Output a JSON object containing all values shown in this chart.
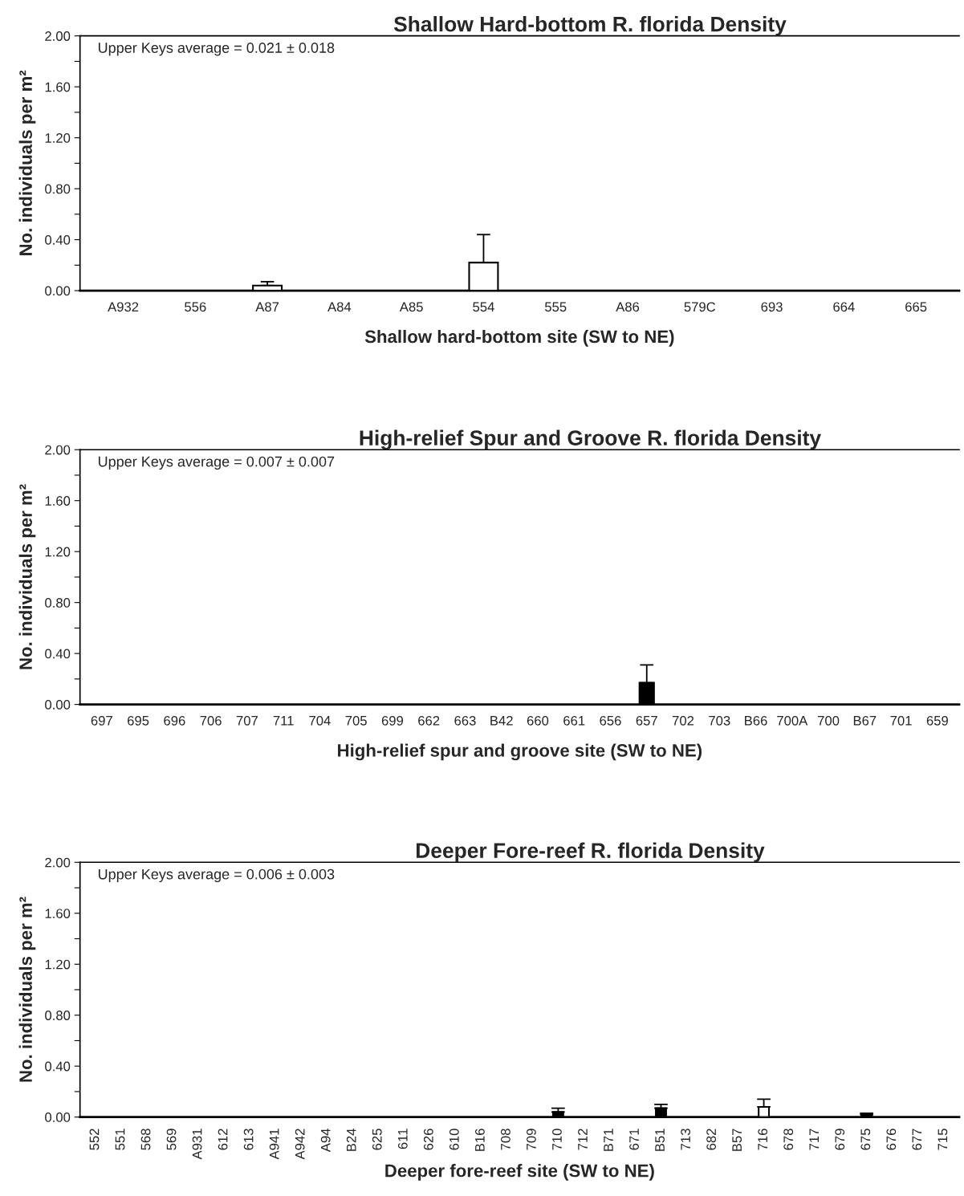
{
  "chart_data": [
    {
      "type": "bar",
      "title": "Shallow Hard-bottom R. florida Density",
      "xlabel": "Shallow hard-bottom site (SW to NE)",
      "ylabel": "No. individuals per m²",
      "categories": [
        "A932",
        "556",
        "A87",
        "A84",
        "A85",
        "554",
        "555",
        "A86",
        "579C",
        "693",
        "664",
        "665"
      ],
      "values": [
        0,
        0,
        0.04,
        0,
        0,
        0.22,
        0,
        0,
        0,
        0,
        0,
        0
      ],
      "errors": [
        null,
        null,
        [
          0.04,
          0.07
        ],
        null,
        null,
        [
          0.22,
          0.44
        ],
        null,
        null,
        null,
        null,
        null,
        null
      ],
      "color": "#ffffff",
      "ylim": [
        0,
        2
      ],
      "yticks": [
        {
          "value": 0,
          "label": "0.00"
        },
        {
          "value": 0.2,
          "label": null
        },
        {
          "value": 0.4,
          "label": "0.40"
        },
        {
          "value": 0.6,
          "label": null
        },
        {
          "value": 0.8,
          "label": "0.80"
        },
        {
          "value": 1.0,
          "label": null
        },
        {
          "value": 1.2,
          "label": "1.20"
        },
        {
          "value": 1.4,
          "label": null
        },
        {
          "value": 1.6,
          "label": "1.60"
        },
        {
          "value": 1.8,
          "label": null
        },
        {
          "value": 2.0,
          "label": "2.00"
        }
      ],
      "annotations": [
        "Upper Keys average = 0.021 ± 0.018"
      ],
      "grid": false,
      "legend": false
    },
    {
      "type": "bar",
      "title": "High-relief Spur and Groove R. florida Density",
      "xlabel": "High-relief spur and groove site (SW to NE)",
      "ylabel": "No. individuals per m²",
      "categories": [
        "697",
        "695",
        "696",
        "706",
        "707",
        "711",
        "704",
        "705",
        "699",
        "662",
        "663",
        "B42",
        "660",
        "661",
        "656",
        "657",
        "702",
        "703",
        "B66",
        "700A",
        "700",
        "B67",
        "701",
        "659"
      ],
      "values": [
        0,
        0,
        0,
        0,
        0,
        0,
        0,
        0,
        0,
        0,
        0,
        0,
        0,
        0,
        0,
        0.17,
        0,
        0,
        0,
        0,
        0,
        0,
        0,
        0
      ],
      "errors": [
        null,
        null,
        null,
        null,
        null,
        null,
        null,
        null,
        null,
        null,
        null,
        null,
        null,
        null,
        null,
        [
          0.17,
          0.31
        ],
        null,
        null,
        null,
        null,
        null,
        null,
        null,
        null
      ],
      "color": "#000000",
      "ylim": [
        0,
        2
      ],
      "yticks": [
        {
          "value": 0,
          "label": "0.00"
        },
        {
          "value": 0.2,
          "label": null
        },
        {
          "value": 0.4,
          "label": "0.40"
        },
        {
          "value": 0.6,
          "label": null
        },
        {
          "value": 0.8,
          "label": "0.80"
        },
        {
          "value": 1.0,
          "label": null
        },
        {
          "value": 1.2,
          "label": "1.20"
        },
        {
          "value": 1.4,
          "label": null
        },
        {
          "value": 1.6,
          "label": "1.60"
        },
        {
          "value": 1.8,
          "label": null
        },
        {
          "value": 2.0,
          "label": "2.00"
        }
      ],
      "annotations": [
        "Upper Keys average = 0.007 ± 0.007"
      ],
      "grid": false,
      "legend": false
    },
    {
      "type": "bar",
      "title": "Deeper Fore-reef R. florida Density",
      "xlabel": "Deeper fore-reef site (SW to NE)",
      "ylabel": "No. individuals per m²",
      "categories": [
        "552",
        "551",
        "568",
        "569",
        "A931",
        "612",
        "613",
        "A941",
        "A942",
        "A94",
        "B24",
        "625",
        "611",
        "626",
        "610",
        "B16",
        "708",
        "709",
        "710",
        "712",
        "B71",
        "671",
        "B51",
        "713",
        "682",
        "B57",
        "716",
        "678",
        "717",
        "679",
        "675",
        "676",
        "677",
        "715"
      ],
      "values": [
        0,
        0,
        0,
        0,
        0,
        0,
        0,
        0,
        0,
        0,
        0,
        0,
        0,
        0,
        0,
        0,
        0,
        0,
        0.04,
        0,
        0,
        0,
        0.07,
        0,
        0,
        0,
        0.08,
        0,
        0,
        0,
        0.02,
        0,
        0,
        0
      ],
      "errors": [
        null,
        null,
        null,
        null,
        null,
        null,
        null,
        null,
        null,
        null,
        null,
        null,
        null,
        null,
        null,
        null,
        null,
        null,
        [
          0.04,
          0.07
        ],
        null,
        null,
        null,
        [
          0.07,
          0.1
        ],
        null,
        null,
        null,
        [
          0.08,
          0.14
        ],
        null,
        null,
        null,
        [
          0.02,
          0.03
        ],
        null,
        null,
        null
      ],
      "colors": [
        "#000000",
        "#000000",
        "#000000",
        "#000000",
        "#000000",
        "#000000",
        "#000000",
        "#000000",
        "#000000",
        "#000000",
        "#000000",
        "#000000",
        "#000000",
        "#000000",
        "#000000",
        "#000000",
        "#000000",
        "#000000",
        "#000000",
        "#000000",
        "#000000",
        "#000000",
        "#000000",
        "#000000",
        "#000000",
        "#000000",
        "#ffffff",
        "#000000",
        "#000000",
        "#000000",
        "#000000",
        "#000000",
        "#000000",
        "#000000"
      ],
      "ylim": [
        0,
        2
      ],
      "yticks": [
        {
          "value": 0,
          "label": "0.00"
        },
        {
          "value": 0.2,
          "label": null
        },
        {
          "value": 0.4,
          "label": "0.40"
        },
        {
          "value": 0.6,
          "label": null
        },
        {
          "value": 0.8,
          "label": "0.80"
        },
        {
          "value": 1.0,
          "label": null
        },
        {
          "value": 1.2,
          "label": "1.20"
        },
        {
          "value": 1.4,
          "label": null
        },
        {
          "value": 1.6,
          "label": "1.60"
        },
        {
          "value": 1.8,
          "label": null
        },
        {
          "value": 2.0,
          "label": "2.00"
        }
      ],
      "annotations": [
        "Upper Keys average = 0.006 ± 0.003"
      ],
      "grid": false,
      "legend": false
    }
  ]
}
